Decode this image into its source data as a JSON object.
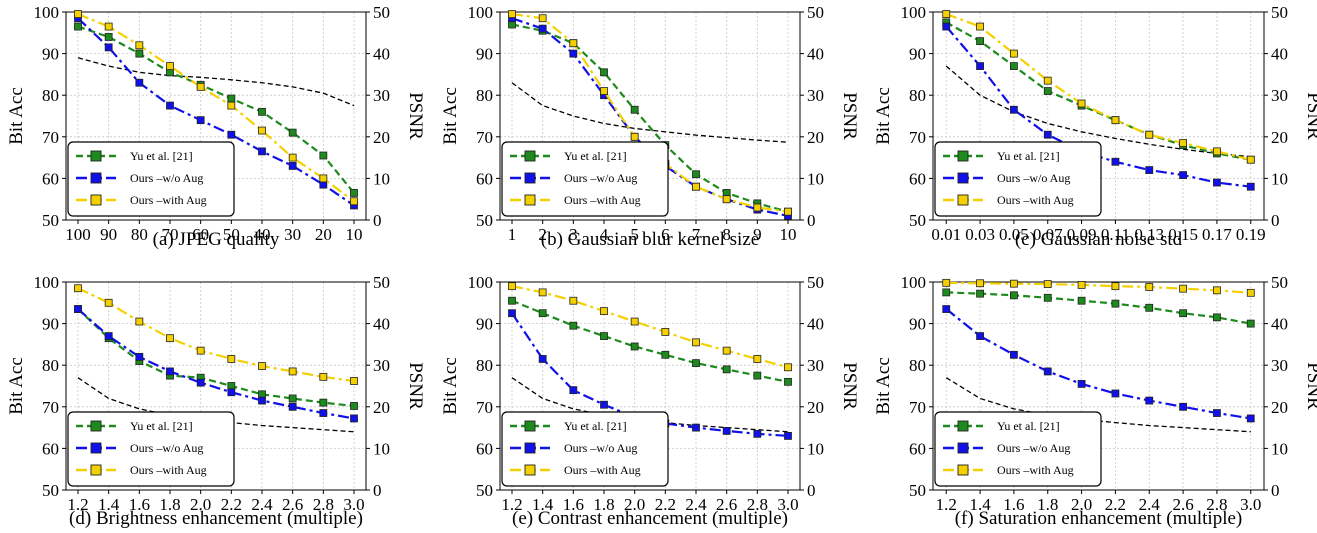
{
  "legend_labels": [
    "Yu et al. [21]",
    "Ours –w/o Aug",
    "Ours –with Aug"
  ],
  "colors": {
    "yu": "#1e8a1e",
    "wo": "#1010e8",
    "with": "#f5d000",
    "psnr": "#000000"
  },
  "chart_data": [
    {
      "type": "line",
      "title": "(a) JPEG quality",
      "ylabel": "Bit Acc",
      "y2label": "PSNR",
      "ylim": [
        50,
        100
      ],
      "y2lim": [
        0,
        50
      ],
      "yticks": [
        50,
        60,
        70,
        80,
        90,
        100
      ],
      "y2ticks": [
        0,
        10,
        20,
        30,
        40,
        50
      ],
      "categories": [
        "100",
        "90",
        "80",
        "70",
        "60",
        "50",
        "40",
        "30",
        "20",
        "10"
      ],
      "legend": "lower-left",
      "grid": true,
      "series": [
        {
          "name": "Yu et al. [21]",
          "values": [
            96.5,
            94.0,
            90.0,
            85.5,
            82.5,
            79.2,
            76.0,
            71.0,
            65.5,
            56.5
          ]
        },
        {
          "name": "Ours –w/o Aug",
          "values": [
            98.5,
            91.5,
            83.0,
            77.5,
            74.0,
            70.5,
            66.5,
            63.0,
            58.5,
            53.5
          ]
        },
        {
          "name": "Ours –with Aug",
          "values": [
            99.5,
            96.5,
            92.0,
            87.0,
            82.0,
            77.5,
            71.5,
            65.0,
            60.0,
            54.5
          ]
        },
        {
          "values": [
            39.0,
            37.0,
            35.5,
            34.7,
            34.3,
            33.7,
            33.0,
            32.0,
            30.5,
            27.5
          ]
        }
      ]
    },
    {
      "type": "line",
      "title": "(b) Gaussian blur kernel size",
      "ylabel": "Bit Acc",
      "y2label": "PSNR",
      "ylim": [
        50,
        100
      ],
      "y2lim": [
        0,
        50
      ],
      "yticks": [
        50,
        60,
        70,
        80,
        90,
        100
      ],
      "y2ticks": [
        0,
        10,
        20,
        30,
        40,
        50
      ],
      "categories": [
        "1",
        "2",
        "3",
        "4",
        "5",
        "6",
        "7",
        "8",
        "9",
        "10"
      ],
      "legend": "lower-left",
      "grid": true,
      "series": [
        {
          "name": "Yu et al. [21]",
          "values": [
            97.0,
            95.5,
            92.5,
            85.5,
            76.5,
            68.0,
            61.0,
            56.5,
            54.0,
            52.0
          ]
        },
        {
          "name": "Ours –w/o Aug",
          "values": [
            98.5,
            96.0,
            90.0,
            80.0,
            70.0,
            63.0,
            58.0,
            55.0,
            52.5,
            51.0
          ]
        },
        {
          "name": "Ours –with Aug",
          "values": [
            99.5,
            98.5,
            92.5,
            81.0,
            70.0,
            63.5,
            58.0,
            55.0,
            53.0,
            52.0
          ]
        },
        {
          "values": [
            33.0,
            27.5,
            25.0,
            23.2,
            22.0,
            21.2,
            20.4,
            19.8,
            19.2,
            18.7
          ]
        }
      ]
    },
    {
      "type": "line",
      "title": "(c) Gaussian noise std",
      "ylabel": "Bit Acc",
      "y2label": "PSNR",
      "ylim": [
        50,
        100
      ],
      "y2lim": [
        0,
        50
      ],
      "yticks": [
        50,
        60,
        70,
        80,
        90,
        100
      ],
      "y2ticks": [
        0,
        10,
        20,
        30,
        40,
        50
      ],
      "categories": [
        "0.01",
        "0.03",
        "0.05",
        "0.07",
        "0.09",
        "0.11",
        "0.13",
        "0.15",
        "0.17",
        "0.19"
      ],
      "legend": "lower-left",
      "grid": true,
      "series": [
        {
          "name": "Yu et al. [21]",
          "values": [
            97.5,
            93.0,
            87.0,
            81.0,
            77.5,
            74.0,
            70.5,
            68.0,
            66.0,
            64.5
          ]
        },
        {
          "name": "Ours –w/o Aug",
          "values": [
            96.5,
            87.0,
            76.5,
            70.5,
            66.5,
            64.0,
            62.0,
            60.8,
            59.0,
            58.0
          ]
        },
        {
          "name": "Ours –with Aug",
          "values": [
            99.5,
            96.5,
            90.0,
            83.5,
            78.0,
            74.0,
            70.5,
            68.5,
            66.5,
            64.5
          ]
        },
        {
          "values": [
            37.0,
            30.0,
            26.0,
            23.2,
            21.2,
            19.6,
            18.2,
            17.0,
            16.0,
            15.2
          ]
        }
      ]
    },
    {
      "type": "line",
      "title": "(d) Brightness enhancement (multiple)",
      "ylabel": "Bit Acc",
      "y2label": "PSNR",
      "ylim": [
        50,
        100
      ],
      "y2lim": [
        0,
        50
      ],
      "yticks": [
        50,
        60,
        70,
        80,
        90,
        100
      ],
      "y2ticks": [
        0,
        10,
        20,
        30,
        40,
        50
      ],
      "categories": [
        "1.2",
        "1.4",
        "1.6",
        "1.8",
        "2.0",
        "2.2",
        "2.4",
        "2.6",
        "2.8",
        "3.0"
      ],
      "legend": "lower-left",
      "grid": true,
      "series": [
        {
          "name": "Yu et al. [21]",
          "values": [
            93.5,
            86.5,
            81.0,
            77.5,
            77.0,
            75.0,
            73.0,
            72.0,
            71.0,
            70.2
          ]
        },
        {
          "name": "Ours –w/o Aug",
          "values": [
            93.5,
            87.0,
            82.0,
            78.5,
            75.8,
            73.5,
            71.5,
            70.0,
            68.5,
            67.2
          ]
        },
        {
          "name": "Ours –with Aug",
          "values": [
            98.5,
            95.0,
            90.5,
            86.5,
            83.5,
            81.5,
            79.8,
            78.5,
            77.2,
            76.2
          ]
        },
        {
          "values": [
            27.0,
            22.0,
            19.5,
            18.0,
            17.0,
            16.2,
            15.5,
            15.0,
            14.5,
            14.0
          ]
        }
      ]
    },
    {
      "type": "line",
      "title": "(e) Contrast enhancement (multiple)",
      "ylabel": "Bit Acc",
      "y2label": "PSNR",
      "ylim": [
        50,
        100
      ],
      "y2lim": [
        0,
        50
      ],
      "yticks": [
        50,
        60,
        70,
        80,
        90,
        100
      ],
      "y2ticks": [
        0,
        10,
        20,
        30,
        40,
        50
      ],
      "categories": [
        "1.2",
        "1.4",
        "1.6",
        "1.8",
        "2.0",
        "2.2",
        "2.4",
        "2.6",
        "2.8",
        "3.0"
      ],
      "legend": "lower-left",
      "grid": true,
      "series": [
        {
          "name": "Yu et al. [21]",
          "values": [
            95.5,
            92.5,
            89.5,
            87.0,
            84.5,
            82.5,
            80.5,
            79.0,
            77.5,
            76.0
          ]
        },
        {
          "name": "Ours –w/o Aug",
          "values": [
            92.5,
            81.5,
            74.0,
            70.5,
            67.5,
            66.0,
            65.0,
            64.2,
            63.5,
            63.0
          ]
        },
        {
          "name": "Ours –with Aug",
          "values": [
            99.0,
            97.5,
            95.5,
            93.0,
            90.5,
            88.0,
            85.5,
            83.5,
            81.5,
            79.5
          ]
        },
        {
          "values": [
            27.0,
            22.0,
            19.5,
            18.0,
            17.0,
            16.2,
            15.5,
            15.0,
            14.5,
            14.0
          ]
        }
      ]
    },
    {
      "type": "line",
      "title": "(f) Saturation enhancement (multiple)",
      "ylabel": "Bit Acc",
      "y2label": "PSNR",
      "ylim": [
        50,
        100
      ],
      "y2lim": [
        0,
        50
      ],
      "yticks": [
        50,
        60,
        70,
        80,
        90,
        100
      ],
      "y2ticks": [
        0,
        10,
        20,
        30,
        40,
        50
      ],
      "categories": [
        "1.2",
        "1.4",
        "1.6",
        "1.8",
        "2.0",
        "2.2",
        "2.4",
        "2.6",
        "2.8",
        "3.0"
      ],
      "legend": "lower-left",
      "grid": true,
      "series": [
        {
          "name": "Yu et al. [21]",
          "values": [
            97.5,
            97.2,
            96.8,
            96.2,
            95.5,
            94.8,
            93.8,
            92.5,
            91.5,
            90.0
          ]
        },
        {
          "name": "Ours –w/o Aug",
          "values": [
            93.5,
            87.0,
            82.5,
            78.5,
            75.5,
            73.2,
            71.5,
            70.0,
            68.5,
            67.2
          ]
        },
        {
          "name": "Ours –with Aug",
          "values": [
            99.8,
            99.7,
            99.6,
            99.5,
            99.3,
            99.0,
            98.8,
            98.4,
            98.0,
            97.4
          ]
        },
        {
          "values": [
            27.0,
            22.0,
            19.5,
            18.0,
            17.0,
            16.2,
            15.5,
            15.0,
            14.5,
            14.0
          ]
        }
      ]
    }
  ]
}
